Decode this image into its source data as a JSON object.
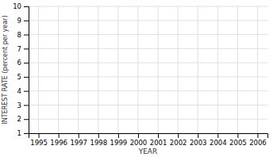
{
  "chart_data": {
    "type": "line",
    "xlabel": "YEAR",
    "ylabel": "INTEREST RATE (percent per year)",
    "xlim": [
      1994.5,
      2006.5
    ],
    "ylim": [
      1,
      10
    ],
    "xticks": [
      1995,
      1996,
      1997,
      1998,
      1999,
      2000,
      2001,
      2002,
      2003,
      2004,
      2005,
      2006
    ],
    "yticks": [
      1,
      2,
      3,
      4,
      5,
      6,
      7,
      8,
      9,
      10
    ],
    "grid": true
  }
}
